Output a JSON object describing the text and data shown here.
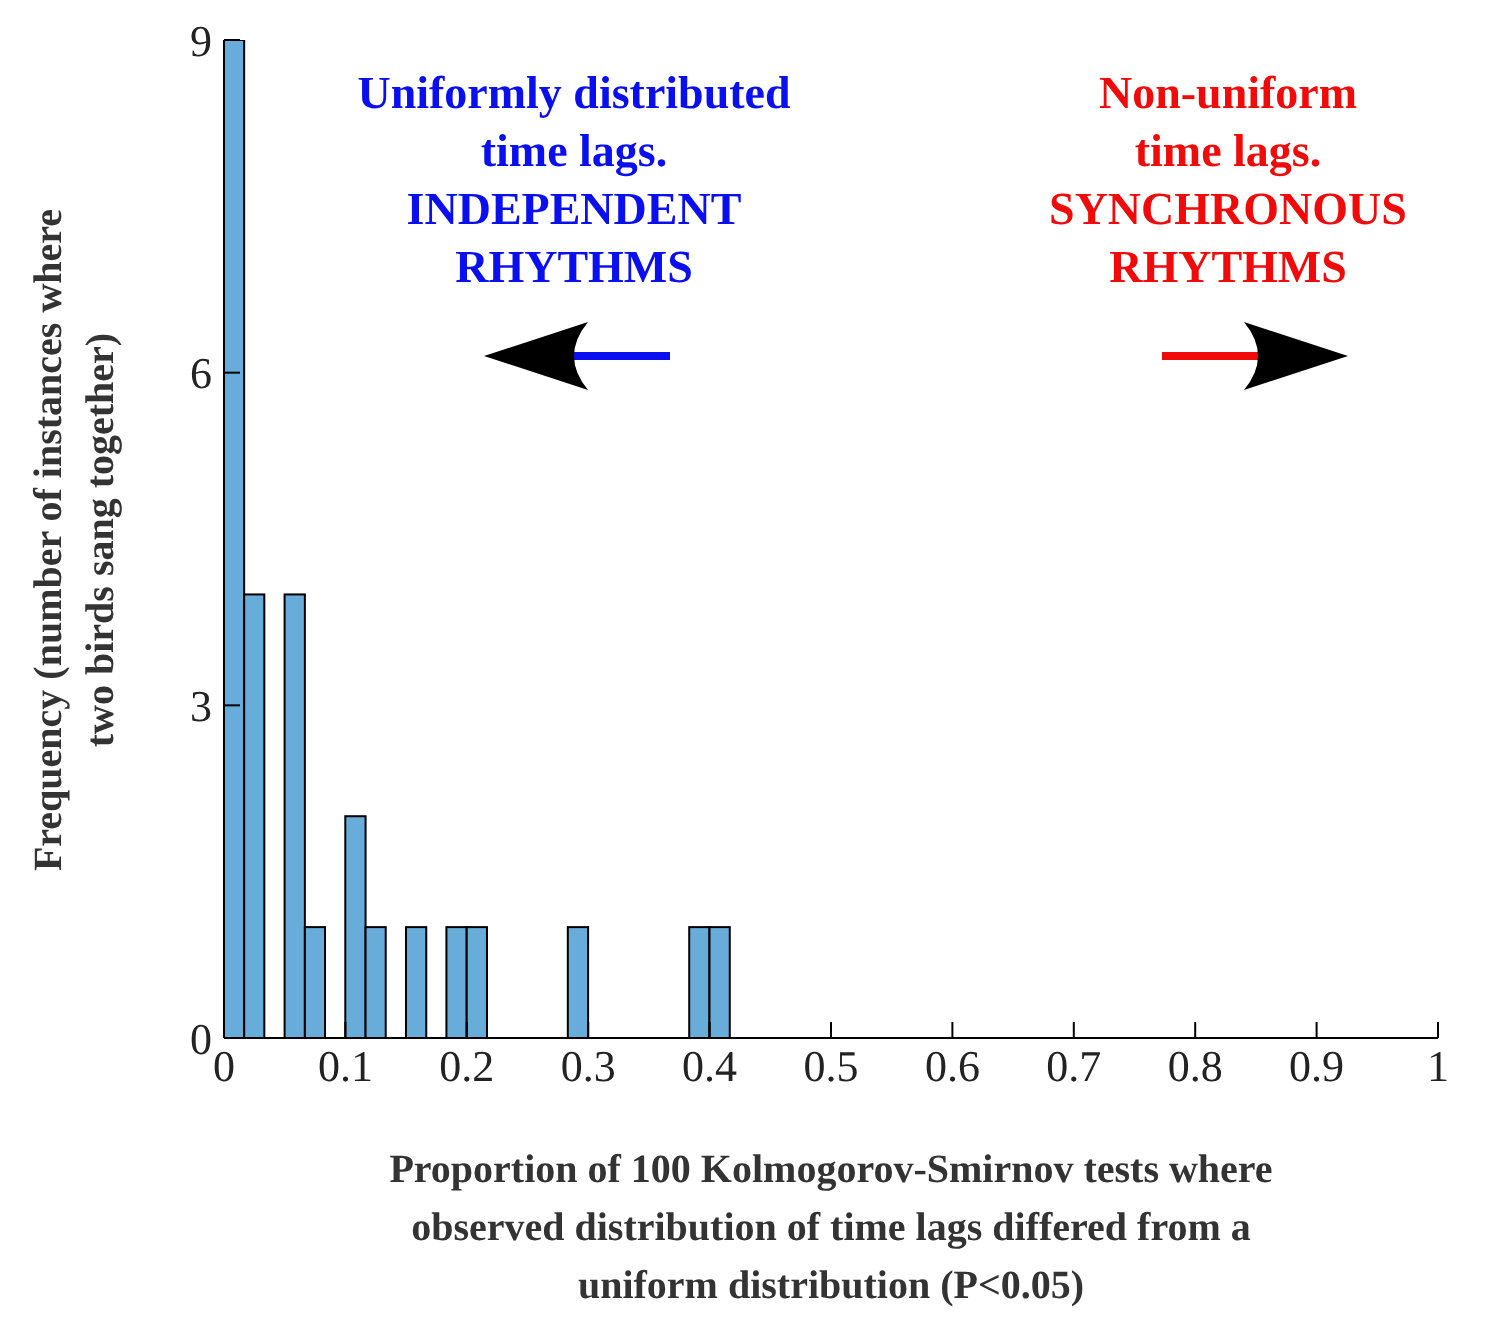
{
  "chart_data": {
    "type": "histogram",
    "bins": [
      0,
      0.0167,
      0.0333,
      0.05,
      0.0667,
      0.0833,
      0.1,
      0.1167,
      0.1333,
      0.15,
      0.1667,
      0.1833,
      0.2,
      0.2167,
      0.2333,
      0.25,
      0.2667,
      0.2833,
      0.3,
      0.3167,
      0.3333,
      0.35,
      0.3667,
      0.3833,
      0.4,
      0.4167
    ],
    "values": [
      9,
      4,
      0,
      4,
      1,
      0,
      2,
      1,
      0,
      1,
      0,
      1,
      1,
      0,
      0,
      0,
      0,
      1,
      0,
      0,
      0,
      0,
      0,
      1,
      1
    ],
    "color": "#68acd9",
    "xlabel": "Proportion of 100 Kolmogorov-Smirnov tests where\nobserved distribution of time lags differed from a\nuniform distribution (P<0.05)",
    "ylabel": "Frequency (number of instances where\ntwo birds sang together)",
    "xlim": [
      0,
      1
    ],
    "xticks": [
      0,
      0.1,
      0.2,
      0.3,
      0.4,
      0.5,
      0.6,
      0.7,
      0.8,
      0.9,
      1
    ],
    "ylim": [
      0,
      9
    ],
    "yticks": [
      0,
      3,
      6,
      9
    ],
    "grid": false,
    "annotations": [
      "Uniformly distributed\ntime lags.\nINDEPENDENT\nRHYTHMS",
      "Non-uniform\ntime lags.\nSYNCHRONOUS\nRHYTHMS"
    ]
  }
}
